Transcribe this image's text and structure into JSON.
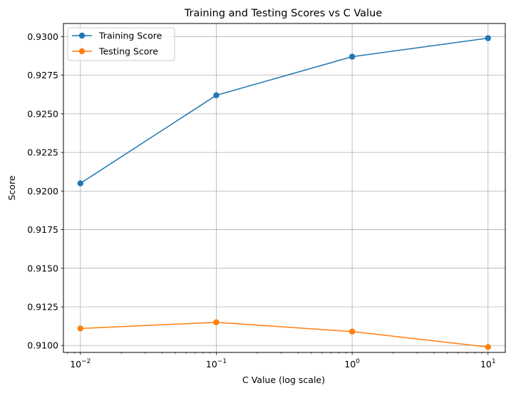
{
  "chart_data": {
    "type": "line",
    "title": "Training and Testing Scores vs C Value",
    "xlabel": "C Value (log scale)",
    "ylabel": "Score",
    "x_scale": "log",
    "x": [
      0.01,
      0.1,
      1,
      10
    ],
    "x_tick_labels": [
      {
        "value": 0.01,
        "base": "10",
        "exp": "−2"
      },
      {
        "value": 0.1,
        "base": "10",
        "exp": "−1"
      },
      {
        "value": 1,
        "base": "10",
        "exp": "0"
      },
      {
        "value": 10,
        "base": "10",
        "exp": "1"
      }
    ],
    "xlim": [
      0.0075,
      13.4
    ],
    "ylim": [
      0.90955,
      0.93085
    ],
    "y_ticks": [
      "0.9100",
      "0.9125",
      "0.9150",
      "0.9175",
      "0.9200",
      "0.9225",
      "0.9250",
      "0.9275",
      "0.9300"
    ],
    "grid": true,
    "legend_position": "top-left",
    "series": [
      {
        "name": "Training Score",
        "color": "#1f77b4",
        "marker": "circle",
        "values": [
          0.9205,
          0.9262,
          0.9287,
          0.9299
        ]
      },
      {
        "name": "Testing Score",
        "color": "#ff7f0e",
        "marker": "circle",
        "values": [
          0.9111,
          0.9115,
          0.9109,
          0.9099
        ]
      }
    ]
  }
}
